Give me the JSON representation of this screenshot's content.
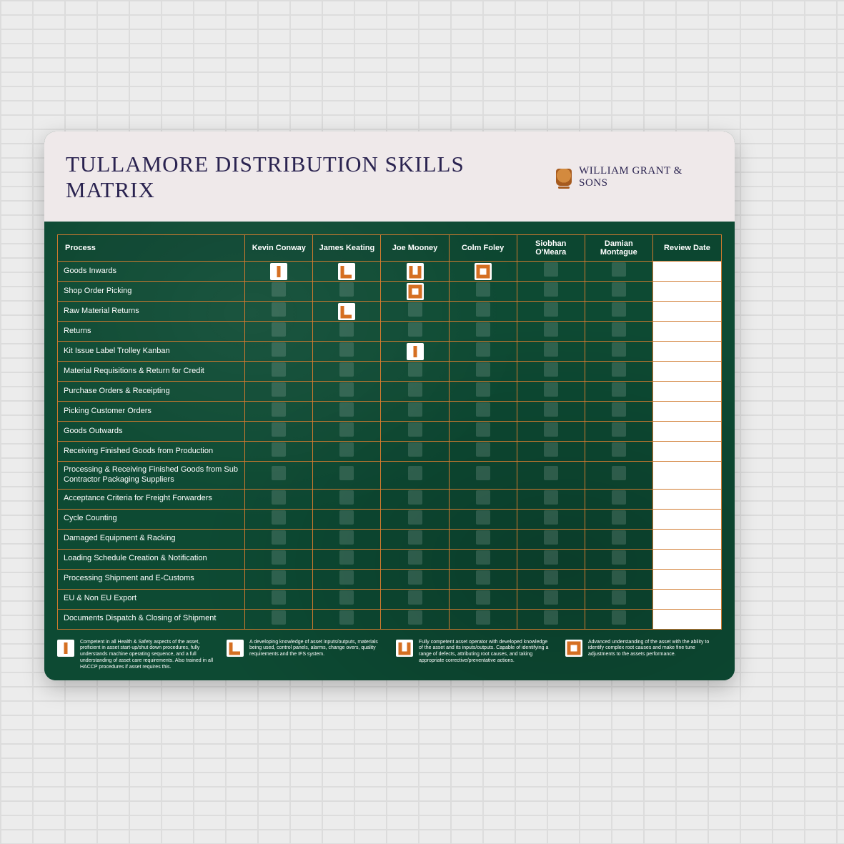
{
  "title": "TULLAMORE DISTRIBUTION SKILLS MATRIX",
  "brand_name": "WILLIAM GRANT & SONS",
  "colors": {
    "accent_orange": "#d56f22",
    "panel_green": "#0d4a33",
    "header_bg": "#efe9ea",
    "title_color": "#2a2350",
    "grid_line": "#d07a2e",
    "slot_bg": "rgba(255,255,255,0.14)",
    "tile_bg": "#ffffff",
    "review_bg": "#ffffff"
  },
  "headers": {
    "process": "Process",
    "review": "Review Date"
  },
  "people": [
    "Kevin Conway",
    "James Keating",
    "Joe Mooney",
    "Colm Foley",
    "Siobhan O'Meara",
    "Damian Montague"
  ],
  "processes": [
    "Goods Inwards",
    "Shop Order Picking",
    "Raw Material Returns",
    "Returns",
    "Kit Issue Label Trolley Kanban",
    "Material Requisitions & Return for Credit",
    "Purchase Orders & Receipting",
    "Picking Customer Orders",
    "Goods Outwards",
    "Receiving Finished Goods from Production",
    "Processing & Receiving Finished Goods from Sub Contractor Packaging Suppliers",
    "Acceptance Criteria for Freight Forwarders",
    "Cycle Counting",
    "Damaged Equipment & Racking",
    "Loading Schedule Creation & Notification",
    "Processing Shipment and E-Customs",
    "EU & Non EU Export",
    "Documents Dispatch & Closing of Shipment"
  ],
  "skill_shapes": [
    "I",
    "L",
    "U",
    "O"
  ],
  "cells": [
    [
      "I",
      "L",
      "U",
      "O",
      "",
      ""
    ],
    [
      "",
      "",
      "O",
      "",
      "",
      ""
    ],
    [
      "",
      "L",
      "",
      "",
      "",
      ""
    ],
    [
      "",
      "",
      "",
      "",
      "",
      ""
    ],
    [
      "",
      "",
      "I",
      "",
      "",
      ""
    ],
    [
      "",
      "",
      "",
      "",
      "",
      ""
    ],
    [
      "",
      "",
      "",
      "",
      "",
      ""
    ],
    [
      "",
      "",
      "",
      "",
      "",
      ""
    ],
    [
      "",
      "",
      "",
      "",
      "",
      ""
    ],
    [
      "",
      "",
      "",
      "",
      "",
      ""
    ],
    [
      "",
      "",
      "",
      "",
      "",
      ""
    ],
    [
      "",
      "",
      "",
      "",
      "",
      ""
    ],
    [
      "",
      "",
      "",
      "",
      "",
      ""
    ],
    [
      "",
      "",
      "",
      "",
      "",
      ""
    ],
    [
      "",
      "",
      "",
      "",
      "",
      ""
    ],
    [
      "",
      "",
      "",
      "",
      "",
      ""
    ],
    [
      "",
      "",
      "",
      "",
      "",
      ""
    ],
    [
      "",
      "",
      "",
      "",
      "",
      ""
    ]
  ],
  "legend": [
    {
      "shape": "I",
      "text": "Competent in all Health & Safety aspects of the asset, proficient in asset start-up/shut down procedures, fully understands machine operating sequence, and a full understanding of asset care requirements. Also trained in all HACCP procedures if asset requires this."
    },
    {
      "shape": "L",
      "text": "A developing knowledge of asset inputs/outputs, materials being used, control panels, alarms, change overs, quality requirements and the IFS system."
    },
    {
      "shape": "U",
      "text": "Fully competent asset operator with developed knowledge of the asset and its inputs/outputs. Capable of identifying a range of defects, attributing root causes, and taking appropriate corrective/preventative actions."
    },
    {
      "shape": "O",
      "text": "Advanced understanding of the asset with the ability to identify complex root causes and make fine tune adjustments to the assets performance."
    }
  ]
}
